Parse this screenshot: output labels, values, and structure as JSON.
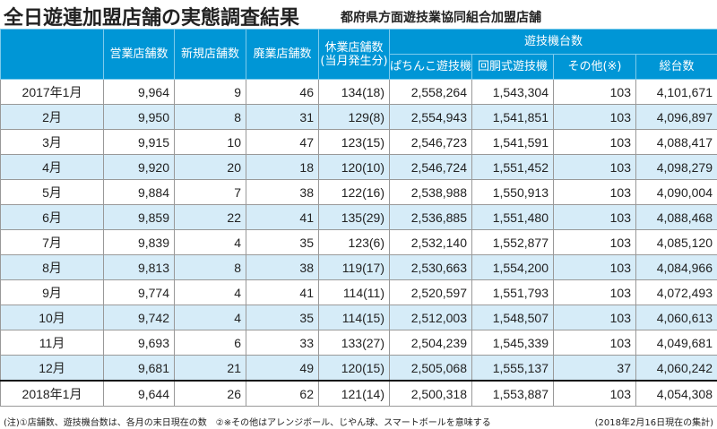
{
  "title": "全日遊連加盟店舗の実態調査結果",
  "subtitle": "都府県方面遊技業協同組合加盟店舗",
  "headers": {
    "open": "営業店舗数",
    "new": "新規店舗数",
    "closed": "廃業店舗数",
    "suspended": "休業店舗数",
    "suspended_sub": "(当月発生分)",
    "machines": "遊技機台数",
    "pachinko": "ぱちんこ遊技機",
    "slot": "回胴式遊技機",
    "other": "その他(※)",
    "total": "総台数"
  },
  "rows": [
    [
      "2017年1月",
      "9,964",
      "9",
      "46",
      "134(18)",
      "2,558,264",
      "1,543,304",
      "103",
      "4,101,671"
    ],
    [
      "2月",
      "9,950",
      "8",
      "31",
      "129(8)",
      "2,554,943",
      "1,541,851",
      "103",
      "4,096,897"
    ],
    [
      "3月",
      "9,915",
      "10",
      "47",
      "123(15)",
      "2,546,723",
      "1,541,591",
      "103",
      "4,088,417"
    ],
    [
      "4月",
      "9,920",
      "20",
      "18",
      "120(10)",
      "2,546,724",
      "1,551,452",
      "103",
      "4,098,279"
    ],
    [
      "5月",
      "9,884",
      "7",
      "38",
      "122(16)",
      "2,538,988",
      "1,550,913",
      "103",
      "4,090,004"
    ],
    [
      "6月",
      "9,859",
      "22",
      "41",
      "135(29)",
      "2,536,885",
      "1,551,480",
      "103",
      "4,088,468"
    ],
    [
      "7月",
      "9,839",
      "4",
      "35",
      "123(6)",
      "2,532,140",
      "1,552,877",
      "103",
      "4,085,120"
    ],
    [
      "8月",
      "9,813",
      "8",
      "38",
      "119(17)",
      "2,530,663",
      "1,554,200",
      "103",
      "4,084,966"
    ],
    [
      "9月",
      "9,774",
      "4",
      "41",
      "114(11)",
      "2,520,597",
      "1,551,793",
      "103",
      "4,072,493"
    ],
    [
      "10月",
      "9,742",
      "4",
      "35",
      "114(15)",
      "2,512,003",
      "1,548,507",
      "103",
      "4,060,613"
    ],
    [
      "11月",
      "9,693",
      "6",
      "33",
      "133(27)",
      "2,504,239",
      "1,545,339",
      "103",
      "4,049,681"
    ],
    [
      "12月",
      "9,681",
      "21",
      "49",
      "120(15)",
      "2,505,068",
      "1,555,137",
      "37",
      "4,060,242"
    ],
    [
      "2018年1月",
      "9,644",
      "26",
      "62",
      "121(14)",
      "2,500,318",
      "1,553,887",
      "103",
      "4,054,308"
    ]
  ],
  "note": "(注)①店舗数、遊技機台数は、各月の末日現在の数　②※その他はアレンジボール、じやん球、スマートボールを意味する",
  "as_of": "(2018年2月16日現在の集計)",
  "colors": {
    "header": "#0096d6",
    "alt_row": "#d6ecf8"
  }
}
